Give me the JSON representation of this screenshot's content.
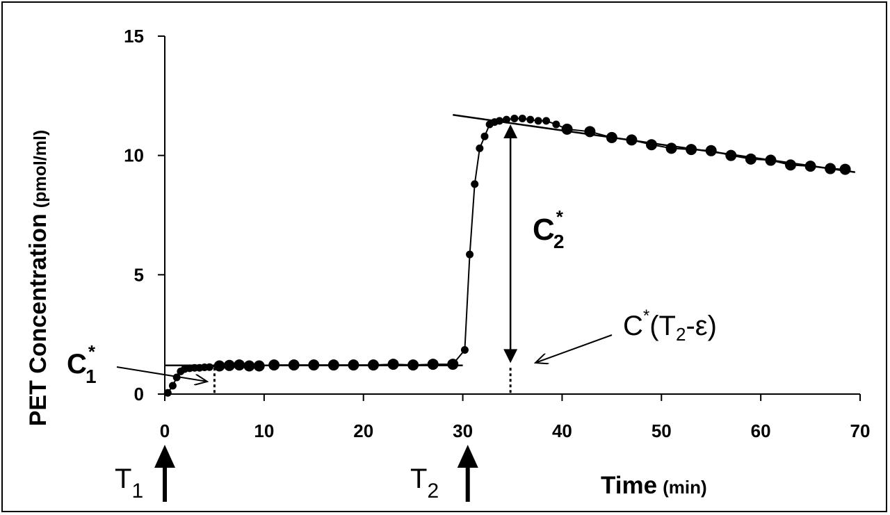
{
  "chart_data": {
    "type": "line",
    "title": "",
    "xlabel": {
      "main": "Time",
      "unit": "(min)"
    },
    "ylabel": {
      "main": "PET Concentration",
      "unit": "(pmol/ml)"
    },
    "xlim": [
      0,
      70
    ],
    "ylim": [
      0,
      15
    ],
    "x_ticks": [
      "0",
      "10",
      "20",
      "30",
      "40",
      "50",
      "60",
      "70"
    ],
    "y_ticks": [
      "0",
      "5",
      "10",
      "15"
    ],
    "grid": false,
    "series": [
      {
        "points": [
          [
            0.3,
            0.05
          ],
          [
            0.8,
            0.35
          ],
          [
            1.2,
            0.7
          ],
          [
            1.6,
            0.95
          ],
          [
            2.0,
            1.05
          ],
          [
            2.5,
            1.08
          ],
          [
            3.0,
            1.1
          ],
          [
            3.5,
            1.1
          ],
          [
            4.0,
            1.12
          ],
          [
            4.5,
            1.13
          ],
          [
            5.5,
            1.18
          ],
          [
            6.5,
            1.2
          ],
          [
            7.5,
            1.22
          ],
          [
            8.5,
            1.18
          ],
          [
            9.5,
            1.18
          ],
          [
            11,
            1.22
          ],
          [
            13,
            1.22
          ],
          [
            15,
            1.22
          ],
          [
            17,
            1.22
          ],
          [
            19,
            1.22
          ],
          [
            21,
            1.22
          ],
          [
            23,
            1.25
          ],
          [
            25,
            1.22
          ],
          [
            27,
            1.25
          ],
          [
            29,
            1.25
          ],
          [
            30.2,
            1.85
          ],
          [
            30.7,
            5.85
          ],
          [
            31.2,
            8.8
          ],
          [
            31.7,
            10.3
          ],
          [
            32.2,
            10.8
          ],
          [
            32.7,
            11.3
          ],
          [
            33.2,
            11.4
          ],
          [
            33.7,
            11.45
          ],
          [
            34.4,
            11.5
          ],
          [
            35.2,
            11.55
          ],
          [
            36,
            11.55
          ],
          [
            36.8,
            11.5
          ],
          [
            37.6,
            11.45
          ],
          [
            38.4,
            11.45
          ],
          [
            39.4,
            11.3
          ],
          [
            40.5,
            11.1
          ],
          [
            42.8,
            11.0
          ],
          [
            45,
            10.75
          ],
          [
            47,
            10.65
          ],
          [
            49,
            10.45
          ],
          [
            51,
            10.3
          ],
          [
            53,
            10.25
          ],
          [
            55,
            10.2
          ],
          [
            57,
            10.0
          ],
          [
            59,
            9.85
          ],
          [
            61,
            9.8
          ],
          [
            63,
            9.6
          ],
          [
            65,
            9.55
          ],
          [
            67,
            9.45
          ],
          [
            68.5,
            9.42
          ]
        ]
      }
    ],
    "fit_lines": [
      {
        "from": [
          0,
          1.2
        ],
        "to": [
          30,
          1.2
        ]
      },
      {
        "from": [
          29,
          11.7
        ],
        "to": [
          69.5,
          9.3
        ]
      }
    ],
    "dotted_markers": [
      {
        "x": 5,
        "y_from": 0.05,
        "y_to": 1.15
      },
      {
        "x": 34.8,
        "y_from": 0.05,
        "y_to": 1.15
      }
    ],
    "double_arrow": {
      "x": 34.8,
      "y_from": 1.3,
      "y_to": 11.3
    },
    "annotations": {
      "c1": {
        "base": "C",
        "sup": "*",
        "sub": "1"
      },
      "c2": {
        "base": "C",
        "sup": "*",
        "sub": "2"
      },
      "ct": {
        "base": "C",
        "sup": "*",
        "paren_open": "(T",
        "sub": "2",
        "rest": "-ε)"
      },
      "t1": {
        "base": "T",
        "sub": "1"
      },
      "t2": {
        "base": "T",
        "sub": "2"
      }
    }
  }
}
